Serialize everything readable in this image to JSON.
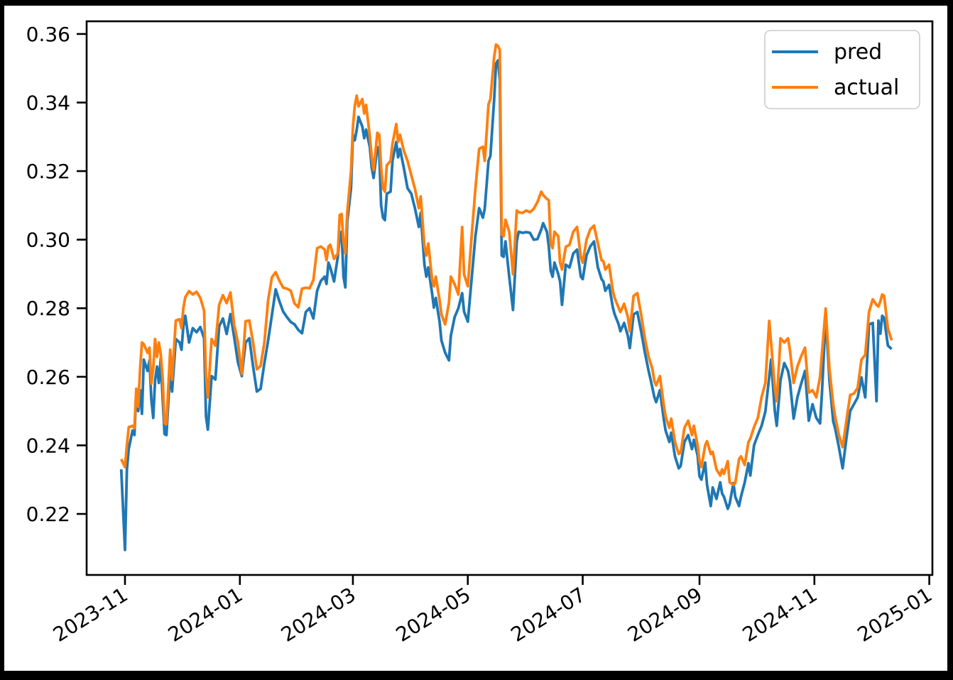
{
  "window": {
    "frame_color": "#000000",
    "figure_background": "#ffffff",
    "axes_background": "#ffffff",
    "spine_color": "#000000"
  },
  "chart_data": {
    "type": "line",
    "title": "",
    "xlabel": "",
    "ylabel": "",
    "grid": false,
    "x_tick_labels": [
      "2023-11",
      "2024-01",
      "2024-03",
      "2024-05",
      "2024-07",
      "2024-09",
      "2024-11",
      "2025-01"
    ],
    "x_tick_dates": [
      "2023-11-01",
      "2024-01-01",
      "2024-03-01",
      "2024-05-01",
      "2024-07-01",
      "2024-09-01",
      "2024-11-01",
      "2025-01-01"
    ],
    "y_tick_labels": [
      "0.36",
      "0.34",
      "0.32",
      "0.30",
      "0.28",
      "0.26",
      "0.24",
      "0.22"
    ],
    "y_tick_values": [
      0.36,
      0.34,
      0.32,
      0.3,
      0.28,
      0.26,
      0.24,
      0.22
    ],
    "ylim": [
      0.2022,
      0.3637
    ],
    "xlim_dates": [
      "2023-10-11",
      "2025-01-03"
    ],
    "legend": {
      "position": "upper right",
      "entries": [
        {
          "label": "pred",
          "color": "#1f77b4"
        },
        {
          "label": "actual",
          "color": "#ff7f0e"
        }
      ]
    },
    "dates": [
      "2023-10-30",
      "2023-11-01",
      "2023-11-02",
      "2023-11-03",
      "2023-11-05",
      "2023-11-06",
      "2023-11-07",
      "2023-11-08",
      "2023-11-09",
      "2023-11-10",
      "2023-11-11",
      "2023-11-13",
      "2023-11-14",
      "2023-11-15",
      "2023-11-16",
      "2023-11-17",
      "2023-11-18",
      "2023-11-19",
      "2023-11-20",
      "2023-11-21",
      "2023-11-22",
      "2023-11-23",
      "2023-11-25",
      "2023-11-26",
      "2023-11-28",
      "2023-11-30",
      "2023-12-01",
      "2023-12-02",
      "2023-12-03",
      "2023-12-05",
      "2023-12-07",
      "2023-12-09",
      "2023-12-11",
      "2023-12-13",
      "2023-12-14",
      "2023-12-15",
      "2023-12-17",
      "2023-12-19",
      "2023-12-21",
      "2023-12-23",
      "2023-12-25",
      "2023-12-27",
      "2023-12-29",
      "2023-12-31",
      "2024-01-02",
      "2024-01-04",
      "2024-01-06",
      "2024-01-08",
      "2024-01-10",
      "2024-01-12",
      "2024-01-14",
      "2024-01-16",
      "2024-01-18",
      "2024-01-20",
      "2024-01-22",
      "2024-01-24",
      "2024-01-26",
      "2024-01-28",
      "2024-01-30",
      "2024-02-01",
      "2024-02-03",
      "2024-02-05",
      "2024-02-07",
      "2024-02-09",
      "2024-02-11",
      "2024-02-13",
      "2024-02-15",
      "2024-02-16",
      "2024-02-17",
      "2024-02-18",
      "2024-02-20",
      "2024-02-22",
      "2024-02-23",
      "2024-02-24",
      "2024-02-25",
      "2024-02-26",
      "2024-02-27",
      "2024-02-29",
      "2024-03-01",
      "2024-03-02",
      "2024-03-03",
      "2024-03-04",
      "2024-03-06",
      "2024-03-07",
      "2024-03-08",
      "2024-03-10",
      "2024-03-11",
      "2024-03-12",
      "2024-03-14",
      "2024-03-15",
      "2024-03-16",
      "2024-03-17",
      "2024-03-18",
      "2024-03-19",
      "2024-03-21",
      "2024-03-22",
      "2024-03-24",
      "2024-03-25",
      "2024-03-26",
      "2024-03-28",
      "2024-03-30",
      "2024-04-01",
      "2024-04-03",
      "2024-04-05",
      "2024-04-06",
      "2024-04-08",
      "2024-04-09",
      "2024-04-10",
      "2024-04-12",
      "2024-04-13",
      "2024-04-14",
      "2024-04-16",
      "2024-04-17",
      "2024-04-19",
      "2024-04-21",
      "2024-04-22",
      "2024-04-24",
      "2024-04-26",
      "2024-04-28",
      "2024-04-29",
      "2024-05-01",
      "2024-05-03",
      "2024-05-05",
      "2024-05-07",
      "2024-05-09",
      "2024-05-10",
      "2024-05-12",
      "2024-05-13",
      "2024-05-15",
      "2024-05-16",
      "2024-05-17",
      "2024-05-18",
      "2024-05-19",
      "2024-05-20",
      "2024-05-21",
      "2024-05-23",
      "2024-05-25",
      "2024-05-27",
      "2024-05-28",
      "2024-05-30",
      "2024-06-01",
      "2024-06-03",
      "2024-06-05",
      "2024-06-07",
      "2024-06-09",
      "2024-06-10",
      "2024-06-12",
      "2024-06-13",
      "2024-06-14",
      "2024-06-15",
      "2024-06-16",
      "2024-06-18",
      "2024-06-19",
      "2024-06-20",
      "2024-06-22",
      "2024-06-24",
      "2024-06-26",
      "2024-06-28",
      "2024-06-30",
      "2024-07-01",
      "2024-07-03",
      "2024-07-05",
      "2024-07-07",
      "2024-07-09",
      "2024-07-11",
      "2024-07-12",
      "2024-07-13",
      "2024-07-15",
      "2024-07-17",
      "2024-07-18",
      "2024-07-20",
      "2024-07-21",
      "2024-07-23",
      "2024-07-25",
      "2024-07-26",
      "2024-07-28",
      "2024-07-30",
      "2024-08-01",
      "2024-08-03",
      "2024-08-05",
      "2024-08-07",
      "2024-08-08",
      "2024-08-09",
      "2024-08-11",
      "2024-08-13",
      "2024-08-14",
      "2024-08-16",
      "2024-08-17",
      "2024-08-19",
      "2024-08-21",
      "2024-08-22",
      "2024-08-24",
      "2024-08-26",
      "2024-08-28",
      "2024-08-29",
      "2024-08-31",
      "2024-09-01",
      "2024-09-02",
      "2024-09-04",
      "2024-09-05",
      "2024-09-07",
      "2024-09-08",
      "2024-09-10",
      "2024-09-12",
      "2024-09-13",
      "2024-09-14",
      "2024-09-16",
      "2024-09-17",
      "2024-09-19",
      "2024-09-20",
      "2024-09-22",
      "2024-09-23",
      "2024-09-25",
      "2024-09-27",
      "2024-09-28",
      "2024-09-30",
      "2024-10-02",
      "2024-10-04",
      "2024-10-06",
      "2024-10-08",
      "2024-10-09",
      "2024-10-11",
      "2024-10-12",
      "2024-10-14",
      "2024-10-16",
      "2024-10-18",
      "2024-10-19",
      "2024-10-21",
      "2024-10-23",
      "2024-10-25",
      "2024-10-27",
      "2024-10-29",
      "2024-10-31",
      "2024-11-02",
      "2024-11-04",
      "2024-11-05",
      "2024-11-07",
      "2024-11-09",
      "2024-11-11",
      "2024-11-12",
      "2024-11-14",
      "2024-11-16",
      "2024-11-18",
      "2024-11-20",
      "2024-11-22",
      "2024-11-24",
      "2024-11-26",
      "2024-11-28",
      "2024-11-30",
      "2024-12-02",
      "2024-12-04",
      "2024-12-05",
      "2024-12-06",
      "2024-12-07",
      "2024-12-08",
      "2024-12-10",
      "2024-12-12"
    ],
    "series": [
      {
        "name": "pred",
        "color": "#1f77b4",
        "values": [
          0.233,
          0.2095,
          0.233,
          0.239,
          0.2443,
          0.243,
          0.2555,
          0.25,
          0.2561,
          0.2492,
          0.265,
          0.2617,
          0.2648,
          0.2534,
          0.248,
          0.259,
          0.263,
          0.2582,
          0.2654,
          0.2534,
          0.2433,
          0.243,
          0.2623,
          0.2557,
          0.271,
          0.27,
          0.2679,
          0.2747,
          0.2778,
          0.27,
          0.2742,
          0.273,
          0.2745,
          0.2712,
          0.2484,
          0.2446,
          0.2602,
          0.2592,
          0.2747,
          0.277,
          0.2725,
          0.2783,
          0.2715,
          0.2642,
          0.2602,
          0.27,
          0.2712,
          0.263,
          0.2557,
          0.2565,
          0.264,
          0.2706,
          0.278,
          0.2855,
          0.282,
          0.279,
          0.2774,
          0.276,
          0.2753,
          0.2737,
          0.2727,
          0.2789,
          0.28,
          0.277,
          0.2851,
          0.288,
          0.2892,
          0.2871,
          0.2933,
          0.2919,
          0.2878,
          0.295,
          0.301,
          0.3023,
          0.2892,
          0.2861,
          0.3052,
          0.315,
          0.3306,
          0.329,
          0.332,
          0.3358,
          0.333,
          0.3296,
          0.3321,
          0.327,
          0.3209,
          0.318,
          0.327,
          0.325,
          0.31,
          0.3064,
          0.3057,
          0.3134,
          0.314,
          0.323,
          0.3285,
          0.324,
          0.3265,
          0.321,
          0.315,
          0.3134,
          0.309,
          0.3037,
          0.3078,
          0.2927,
          0.2892,
          0.2919,
          0.2844,
          0.2802,
          0.283,
          0.2761,
          0.2706,
          0.267,
          0.2648,
          0.272,
          0.2774,
          0.28,
          0.2844,
          0.279,
          0.2761,
          0.2885,
          0.3009,
          0.3092,
          0.3064,
          0.309,
          0.323,
          0.3244,
          0.341,
          0.3513,
          0.3523,
          0.3465,
          0.2954,
          0.295,
          0.2995,
          0.2892,
          0.2795,
          0.2995,
          0.3023,
          0.302,
          0.3022,
          0.302,
          0.3,
          0.3002,
          0.303,
          0.3048,
          0.3023,
          0.298,
          0.2909,
          0.2892,
          0.2933,
          0.29,
          0.2878,
          0.281,
          0.2927,
          0.2919,
          0.296,
          0.2971,
          0.2892,
          0.2885,
          0.2954,
          0.298,
          0.2995,
          0.292,
          0.2885,
          0.2878,
          0.2851,
          0.2868,
          0.2802,
          0.2782,
          0.2754,
          0.2733,
          0.2757,
          0.2719,
          0.2684,
          0.2782,
          0.2789,
          0.2733,
          0.2671,
          0.2617,
          0.2568,
          0.2541,
          0.2526,
          0.2561,
          0.2478,
          0.2443,
          0.241,
          0.2437,
          0.2368,
          0.2333,
          0.234,
          0.241,
          0.243,
          0.2389,
          0.2416,
          0.237,
          0.231,
          0.23,
          0.235,
          0.2285,
          0.2223,
          0.2277,
          0.2244,
          0.2292,
          0.226,
          0.225,
          0.2215,
          0.223,
          0.229,
          0.225,
          0.2223,
          0.225,
          0.2292,
          0.2348,
          0.2312,
          0.2401,
          0.243,
          0.2457,
          0.2499,
          0.26,
          0.265,
          0.25,
          0.2457,
          0.259,
          0.264,
          0.2617,
          0.2588,
          0.2478,
          0.254,
          0.258,
          0.2617,
          0.2472,
          0.252,
          0.248,
          0.2464,
          0.255,
          0.2778,
          0.259,
          0.247,
          0.245,
          0.2395,
          0.2333,
          0.242,
          0.25,
          0.252,
          0.254,
          0.2598,
          0.254,
          0.2753,
          0.2757,
          0.2529,
          0.2764,
          0.2726,
          0.2778,
          0.2772,
          0.2691,
          0.2681
        ]
      },
      {
        "name": "actual",
        "color": "#ff7f0e",
        "values": [
          0.236,
          0.2337,
          0.24,
          0.2453,
          0.2457,
          0.245,
          0.2565,
          0.2513,
          0.262,
          0.27,
          0.2695,
          0.267,
          0.2685,
          0.258,
          0.2625,
          0.271,
          0.2658,
          0.27,
          0.2665,
          0.2596,
          0.2464,
          0.2462,
          0.2679,
          0.2592,
          0.2764,
          0.2768,
          0.2742,
          0.28,
          0.2832,
          0.285,
          0.284,
          0.2848,
          0.283,
          0.2793,
          0.2602,
          0.254,
          0.271,
          0.2691,
          0.281,
          0.2838,
          0.2815,
          0.2846,
          0.2751,
          0.27,
          0.2608,
          0.2762,
          0.2764,
          0.27,
          0.2622,
          0.2632,
          0.27,
          0.2824,
          0.289,
          0.2905,
          0.288,
          0.286,
          0.2857,
          0.2851,
          0.2814,
          0.2803,
          0.2857,
          0.286,
          0.2858,
          0.2882,
          0.2975,
          0.298,
          0.2971,
          0.294,
          0.298,
          0.2985,
          0.2944,
          0.296,
          0.3072,
          0.3075,
          0.2995,
          0.296,
          0.3079,
          0.32,
          0.333,
          0.339,
          0.342,
          0.3389,
          0.341,
          0.3368,
          0.3393,
          0.3302,
          0.324,
          0.3203,
          0.3312,
          0.3306,
          0.3209,
          0.315,
          0.314,
          0.3217,
          0.323,
          0.328,
          0.3337,
          0.3285,
          0.3306,
          0.326,
          0.323,
          0.3188,
          0.3147,
          0.3092,
          0.3126,
          0.2981,
          0.2954,
          0.2989,
          0.2885,
          0.2864,
          0.2892,
          0.2824,
          0.2782,
          0.2753,
          0.2816,
          0.2892,
          0.287,
          0.284,
          0.3037,
          0.2899,
          0.2864,
          0.3009,
          0.3147,
          0.3265,
          0.3271,
          0.323,
          0.3395,
          0.341,
          0.3534,
          0.3569,
          0.3565,
          0.3554,
          0.3016,
          0.301,
          0.3058,
          0.3023,
          0.2899,
          0.3085,
          0.308,
          0.3078,
          0.3085,
          0.308,
          0.309,
          0.311,
          0.314,
          0.313,
          0.3119,
          0.3115,
          0.2989,
          0.2975,
          0.3023,
          0.301,
          0.2933,
          0.2913,
          0.2979,
          0.2985,
          0.3023,
          0.3037,
          0.295,
          0.2933,
          0.3,
          0.303,
          0.3041,
          0.299,
          0.294,
          0.2937,
          0.2913,
          0.2927,
          0.2851,
          0.283,
          0.2802,
          0.2789,
          0.2813,
          0.2774,
          0.2733,
          0.2836,
          0.2844,
          0.2782,
          0.2712,
          0.2658,
          0.2623,
          0.2588,
          0.2575,
          0.2602,
          0.2519,
          0.2484,
          0.2451,
          0.2478,
          0.241,
          0.2375,
          0.2379,
          0.2451,
          0.2472,
          0.243,
          0.2457,
          0.24,
          0.2354,
          0.2337,
          0.24,
          0.2412,
          0.2375,
          0.2381,
          0.233,
          0.2312,
          0.233,
          0.2317,
          0.2354,
          0.2292,
          0.2285,
          0.229,
          0.236,
          0.2368,
          0.2343,
          0.241,
          0.242,
          0.2454,
          0.248,
          0.2541,
          0.2582,
          0.2763,
          0.27,
          0.2567,
          0.2529,
          0.2712,
          0.27,
          0.2712,
          0.2679,
          0.2582,
          0.263,
          0.266,
          0.2685,
          0.2554,
          0.2561,
          0.254,
          0.26,
          0.2668,
          0.2799,
          0.2623,
          0.252,
          0.2484,
          0.243,
          0.2395,
          0.2472,
          0.2547,
          0.2551,
          0.2568,
          0.265,
          0.2664,
          0.2789,
          0.2826,
          0.281,
          0.2805,
          0.282,
          0.284,
          0.2836,
          0.2741,
          0.2706
        ]
      }
    ]
  }
}
